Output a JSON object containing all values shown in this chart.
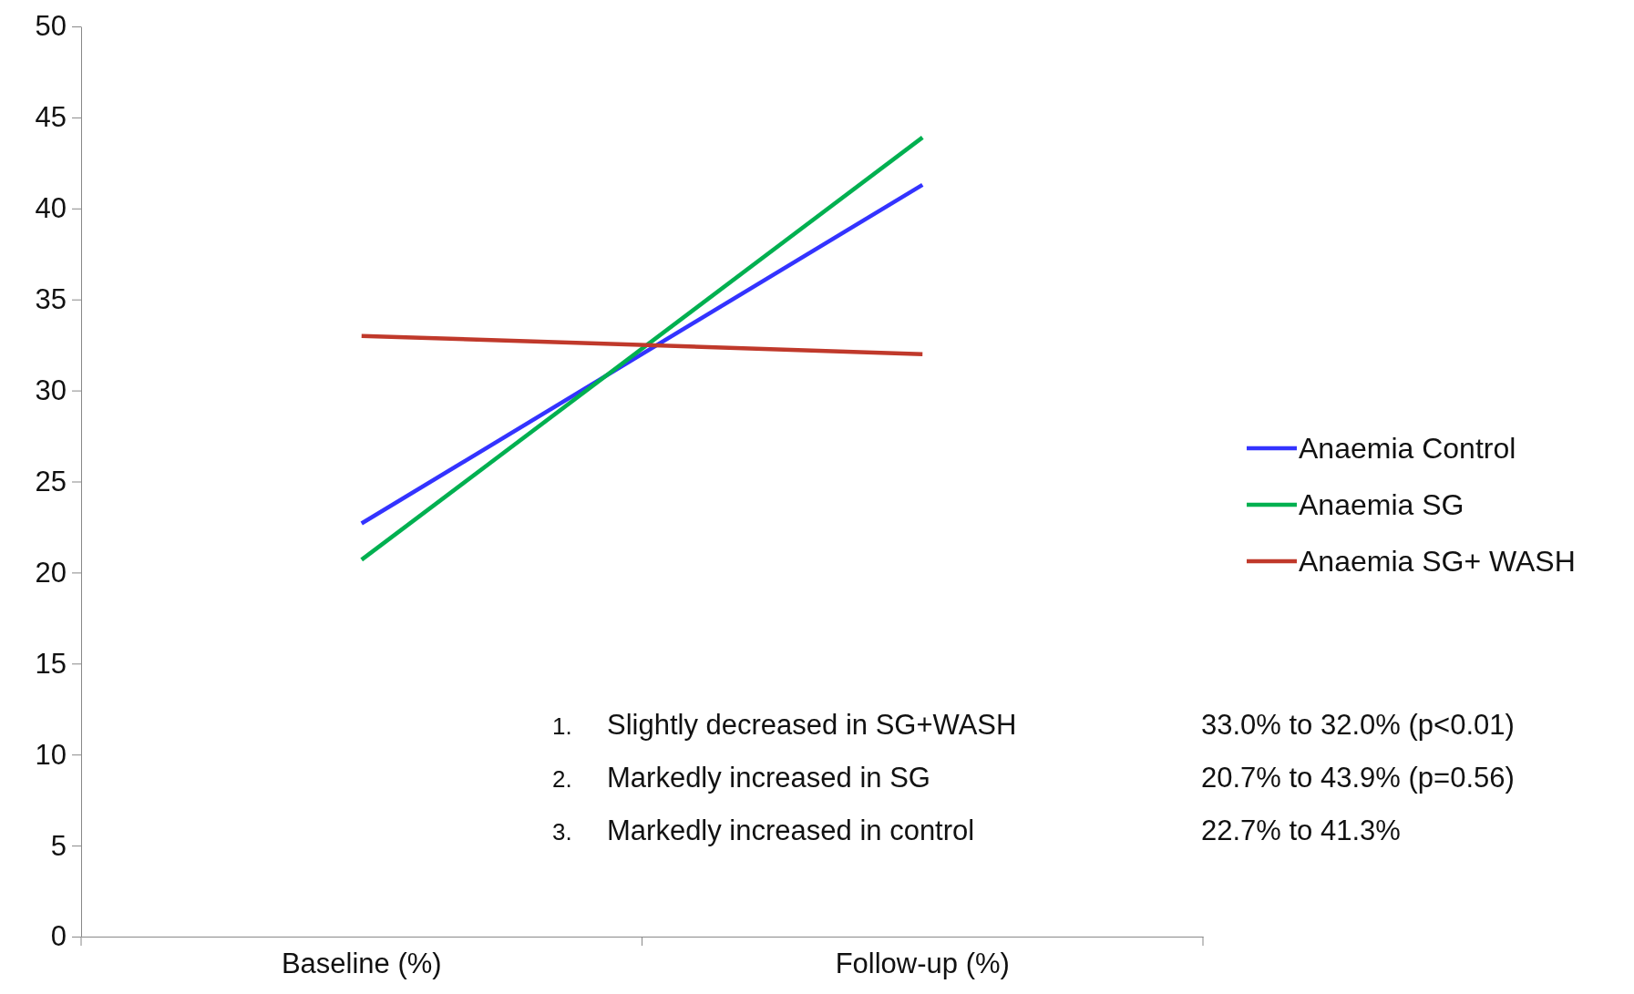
{
  "chart_data": {
    "type": "line",
    "categories": [
      "Baseline (%)",
      "Follow-up (%)"
    ],
    "series": [
      {
        "name": "Anaemia  Control",
        "color": "#3333ff",
        "values": [
          22.7,
          41.3
        ]
      },
      {
        "name": "Anaemia  SG",
        "color": "#00b050",
        "values": [
          20.7,
          43.9
        ]
      },
      {
        "name": "Anaemia  SG+ WASH",
        "color": "#c0392b",
        "values": [
          33.0,
          32.0
        ]
      }
    ],
    "ylim": [
      0,
      50
    ],
    "yticks": [
      0,
      5,
      10,
      15,
      20,
      25,
      30,
      35,
      40,
      45,
      50
    ],
    "grid": false,
    "legend": "right",
    "marker": "none",
    "line_style": "solid",
    "annotations": [
      "1.",
      "Slightly decreased in SG+WASH",
      "33.0% to 32.0%  (p<0.01)",
      "2.",
      "Markedly increased in SG",
      "20.7% to 43.9% (p=0.56)",
      "3.",
      "Markedly increased in control",
      "22.7% to 41.3%"
    ]
  }
}
